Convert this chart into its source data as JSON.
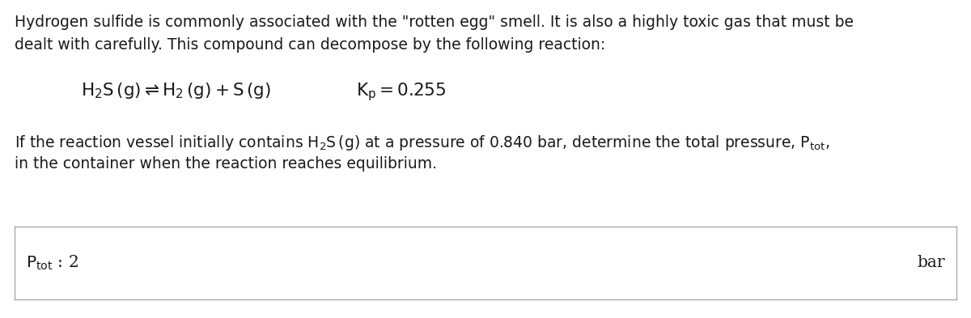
{
  "bg_color": "#ffffff",
  "text_color": "#1a1a1a",
  "font_size_body": 13.5,
  "font_size_equation": 15.5,
  "font_size_answer": 14.5,
  "line1": "Hydrogen sulfide is commonly associated with the \"rotten egg\" smell. It is also a highly toxic gas that must be",
  "line2": "dealt with carefully. This compound can decompose by the following reaction:",
  "eq_left": "$\\mathrm{H_2S\\,(g) \\rightleftharpoons H_2\\,(g) + S\\,(g)}$",
  "eq_right": "$\\mathrm{K_p = 0.255}$",
  "para2_line1": "If the reaction vessel initially contains $\\mathrm{H_2S\\,(g)}$ at a pressure of 0.840 bar, determine the total pressure, $\\mathrm{P_{tot}}$,",
  "para2_line2": "in the container when the reaction reaches equilibrium.",
  "ans_label": "$\\mathrm{P_{tot}}$ : 2",
  "ans_unit": "bar",
  "box_edge_color": "#aaaaaa",
  "box_face_color": "#ffffff"
}
